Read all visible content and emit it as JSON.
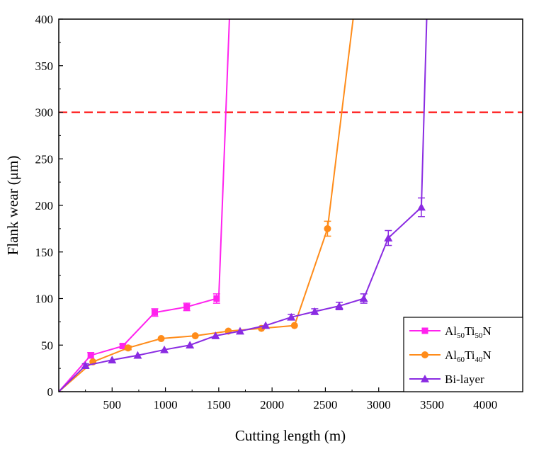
{
  "chart_data": {
    "type": "line",
    "title": "",
    "xlabel": "Cutting length (m)",
    "ylabel": "Flank wear (μm)",
    "xlim": [
      0,
      4350
    ],
    "ylim": [
      0,
      400
    ],
    "x_ticks": [
      500,
      1000,
      1500,
      2000,
      2500,
      3000,
      3500,
      4000
    ],
    "y_ticks": [
      0,
      50,
      100,
      150,
      200,
      250,
      300,
      350,
      400
    ],
    "grid": false,
    "legend_position": "bottom-right",
    "reference_line": {
      "y": 300,
      "style": "dashed",
      "color": "#ff0000"
    },
    "series": [
      {
        "name": "Al50Ti50N",
        "legend": {
          "base1": "Al",
          "sub1": "50",
          "base2": "Ti",
          "sub2": "50",
          "base3": "N"
        },
        "color": "#ff22ee",
        "marker": "square",
        "points": [
          {
            "x": 0,
            "y": 0
          },
          {
            "x": 300,
            "y": 39,
            "err": 3
          },
          {
            "x": 600,
            "y": 49,
            "err": 2
          },
          {
            "x": 900,
            "y": 85,
            "err": 4
          },
          {
            "x": 1200,
            "y": 91,
            "err": 4
          },
          {
            "x": 1480,
            "y": 100,
            "err": 5
          },
          {
            "x": 1500,
            "y": 100
          }
        ],
        "tail": [
          {
            "x": 1500,
            "y": 100
          },
          {
            "x": 1600,
            "y": 400
          }
        ]
      },
      {
        "name": "Al60Ti40N",
        "legend": {
          "base1": "Al",
          "sub1": "60",
          "base2": "Ti",
          "sub2": "40",
          "base3": "N"
        },
        "color": "#ff8c1a",
        "marker": "circle",
        "points": [
          {
            "x": 0,
            "y": 0
          },
          {
            "x": 320,
            "y": 32
          },
          {
            "x": 650,
            "y": 47,
            "err": 2
          },
          {
            "x": 960,
            "y": 57
          },
          {
            "x": 1280,
            "y": 60
          },
          {
            "x": 1590,
            "y": 65
          },
          {
            "x": 1900,
            "y": 68
          },
          {
            "x": 2210,
            "y": 71
          },
          {
            "x": 2520,
            "y": 175,
            "err": 8
          }
        ],
        "tail": [
          {
            "x": 2520,
            "y": 175
          },
          {
            "x": 2760,
            "y": 400
          }
        ]
      },
      {
        "name": "Bi-layer",
        "legend": {
          "base1": "Bi-layer",
          "sub1": "",
          "base2": "",
          "sub2": "",
          "base3": ""
        },
        "color": "#8a2be2",
        "marker": "triangle",
        "points": [
          {
            "x": 0,
            "y": 0
          },
          {
            "x": 250,
            "y": 28,
            "err": 2
          },
          {
            "x": 500,
            "y": 34
          },
          {
            "x": 740,
            "y": 39
          },
          {
            "x": 990,
            "y": 45
          },
          {
            "x": 1230,
            "y": 50
          },
          {
            "x": 1470,
            "y": 60
          },
          {
            "x": 1700,
            "y": 65
          },
          {
            "x": 1940,
            "y": 71
          },
          {
            "x": 2180,
            "y": 80,
            "err": 3
          },
          {
            "x": 2400,
            "y": 86,
            "err": 3
          },
          {
            "x": 2630,
            "y": 92,
            "err": 4
          },
          {
            "x": 2860,
            "y": 100,
            "err": 5
          },
          {
            "x": 3090,
            "y": 165,
            "err": 8
          },
          {
            "x": 3400,
            "y": 198,
            "err": 10
          }
        ],
        "tail": [
          {
            "x": 3400,
            "y": 198
          },
          {
            "x": 3450,
            "y": 400
          }
        ]
      }
    ]
  }
}
